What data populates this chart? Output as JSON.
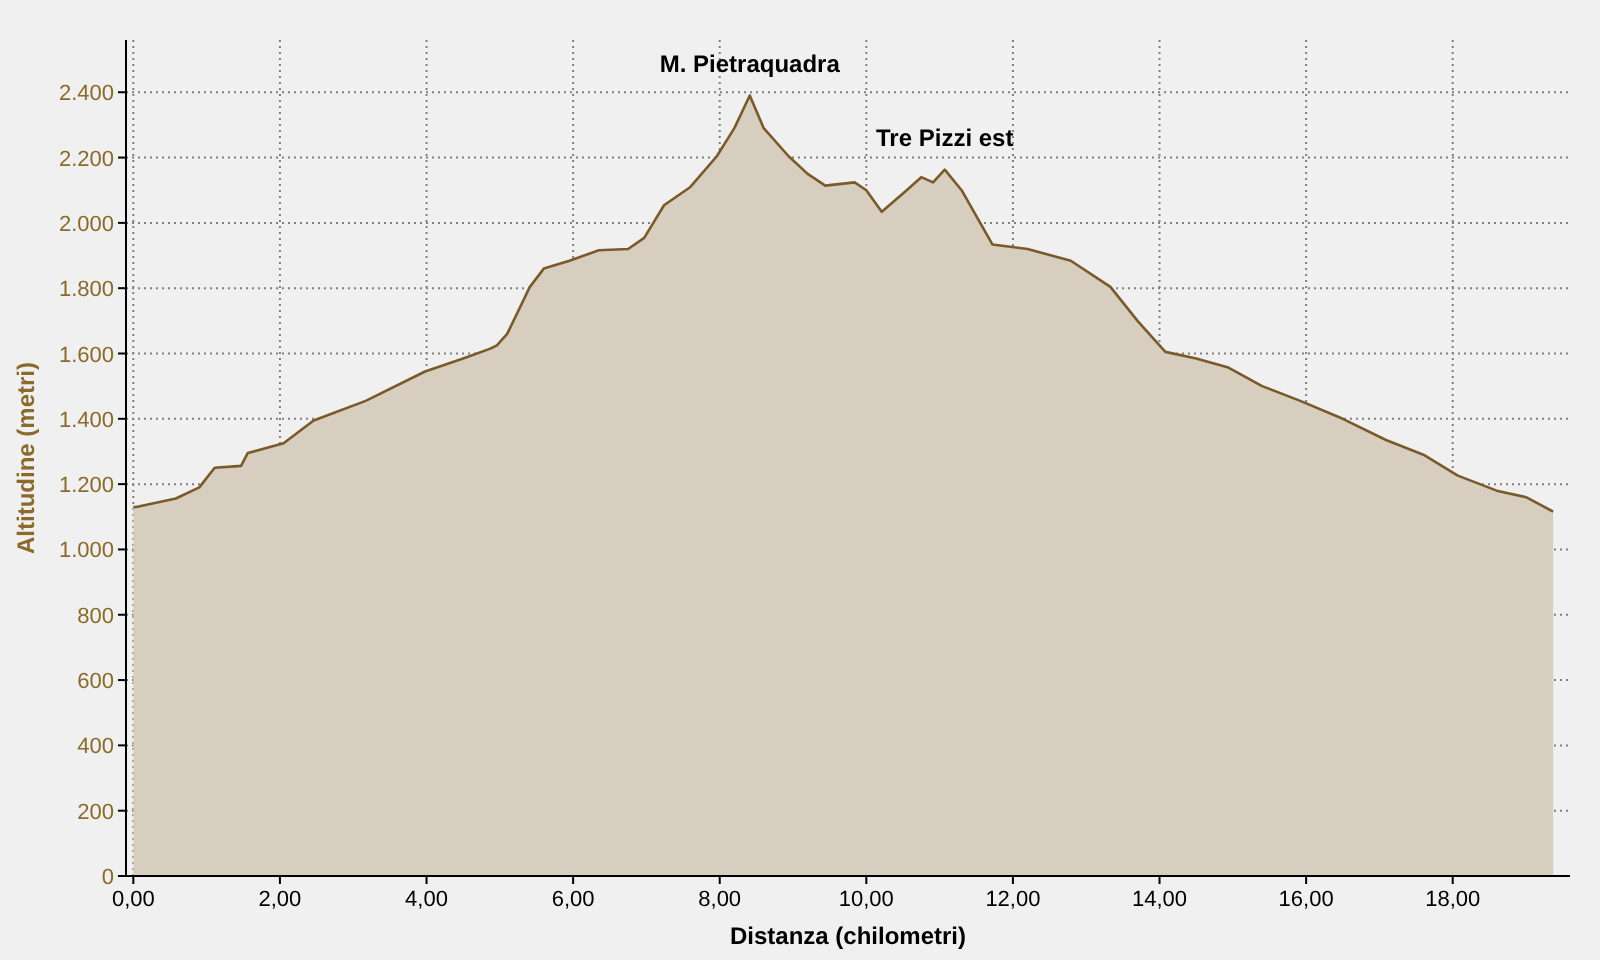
{
  "chart_data": {
    "type": "area",
    "xlabel": "Distanza (chilometri)",
    "ylabel": "Altitudine (metri)",
    "annotations": [
      {
        "text": "M. Pietraquadra",
        "x": 8.41,
        "y": 2390
      },
      {
        "text": "Tre Pizzi est",
        "x": 11.07,
        "y": 2163
      }
    ],
    "x": [
      0,
      0.04,
      0.58,
      0.9,
      1.11,
      1.47,
      1.56,
      2.05,
      2.46,
      3.17,
      3.98,
      4.5,
      4.87,
      4.96,
      5.1,
      5.41,
      5.6,
      5.95,
      6.35,
      6.75,
      6.97,
      7.24,
      7.6,
      7.96,
      8.2,
      8.41,
      8.6,
      8.94,
      9.2,
      9.44,
      9.84,
      10.0,
      10.21,
      10.5,
      10.75,
      10.91,
      11.07,
      11.3,
      11.72,
      12.2,
      12.79,
      13.33,
      13.7,
      14.08,
      14.5,
      14.94,
      15.4,
      15.92,
      16.5,
      17.09,
      17.6,
      18.07,
      18.6,
      19.0,
      19.37
    ],
    "series": [
      {
        "color": "#7a5a2a",
        "values": [
          1130,
          1130,
          1156,
          1190,
          1250,
          1256,
          1295,
          1325,
          1395,
          1455,
          1545,
          1585,
          1615,
          1625,
          1660,
          1804,
          1860,
          1884,
          1916,
          1920,
          1954,
          2054,
          2110,
          2204,
          2290,
          2390,
          2290,
          2204,
          2150,
          2114,
          2124,
          2100,
          2034,
          2090,
          2140,
          2124,
          2163,
          2100,
          1934,
          1920,
          1884,
          1804,
          1700,
          1605,
          1585,
          1557,
          1500,
          1455,
          1400,
          1335,
          1290,
          1226,
          1180,
          1160,
          1116
        ]
      }
    ],
    "xlim": [
      -0.1,
      19.6
    ],
    "ylim": [
      0,
      2560
    ],
    "xticks": [
      {
        "value": 0,
        "label": "0,00"
      },
      {
        "value": 2,
        "label": "2,00"
      },
      {
        "value": 4,
        "label": "4,00"
      },
      {
        "value": 6,
        "label": "6,00"
      },
      {
        "value": 8,
        "label": "8,00"
      },
      {
        "value": 10,
        "label": "10,00"
      },
      {
        "value": 12,
        "label": "12,00"
      },
      {
        "value": 14,
        "label": "14,00"
      },
      {
        "value": 16,
        "label": "16,00"
      },
      {
        "value": 18,
        "label": "18,00"
      }
    ],
    "yticks": [
      0,
      200,
      400,
      600,
      800,
      {
        "value": 1000,
        "label": "1.000"
      },
      {
        "value": 1200,
        "label": "1.200"
      },
      {
        "value": 1400,
        "label": "1.400"
      },
      {
        "value": 1600,
        "label": "1.600"
      },
      {
        "value": 1800,
        "label": "1.800"
      },
      {
        "value": 2000,
        "label": "2.000"
      },
      {
        "value": 2200,
        "label": "2.200"
      },
      {
        "value": 2400,
        "label": "2.400"
      }
    ],
    "grid": true
  }
}
